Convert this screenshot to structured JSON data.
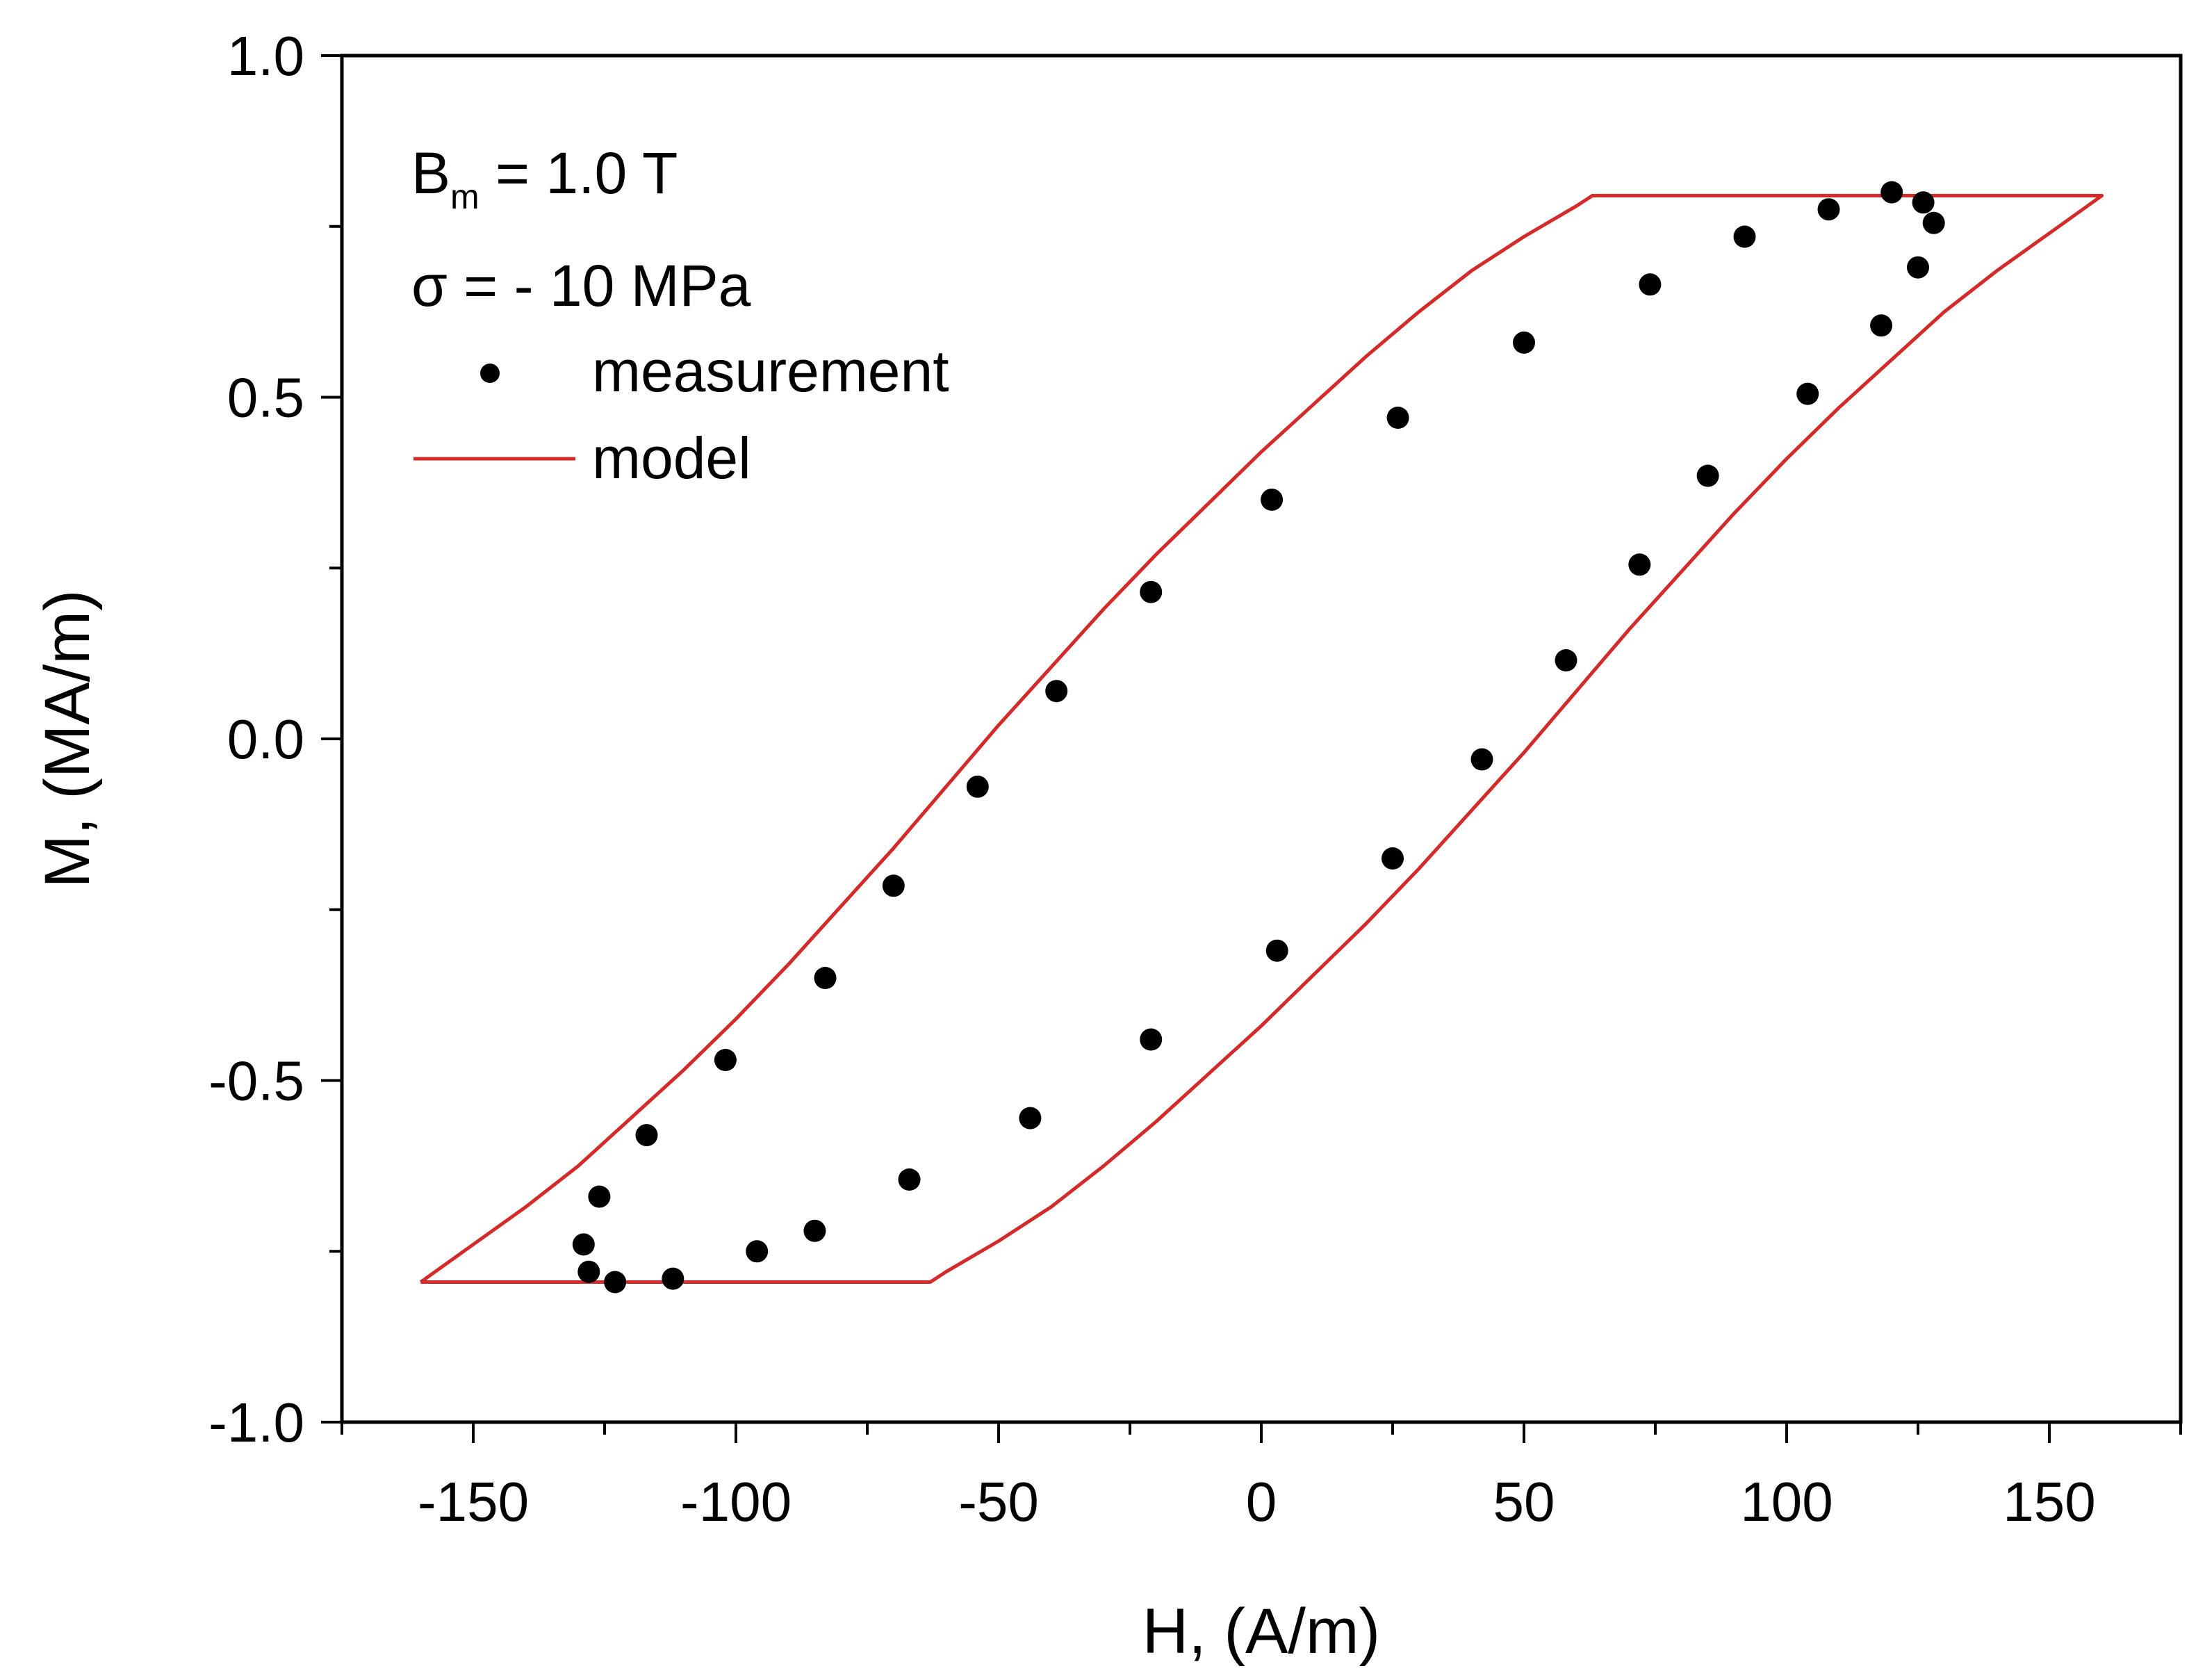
{
  "chart_data": {
    "type": "scatter",
    "title": "",
    "xlabel": "H, (A/m)",
    "ylabel": "M, (MA/m)",
    "xlim": [
      -175,
      175
    ],
    "ylim": [
      -1.0,
      1.0
    ],
    "x_ticks": [
      -150,
      -100,
      -50,
      0,
      50,
      100,
      150
    ],
    "x_tick_labels": [
      "-150",
      "-100",
      "-50",
      "0",
      "50",
      "100",
      "150"
    ],
    "y_ticks": [
      -1.0,
      -0.5,
      0.0,
      0.5,
      1.0
    ],
    "y_tick_labels": [
      "-1.0",
      "-0.5",
      "0.0",
      "0.5",
      "1.0"
    ],
    "grid": false,
    "annotations": {
      "bm_symbol": "B",
      "bm_subscript": "m",
      "bm_value": " = 1.0 T",
      "sigma": "σ = - 10 MPa"
    },
    "legend": {
      "position": "top-left",
      "entries": [
        {
          "label": "measurement",
          "marker": "circle",
          "color": "#000000"
        },
        {
          "label": "model",
          "marker": "line",
          "color": "#d42a2a"
        }
      ]
    },
    "series": [
      {
        "name": "measurement",
        "kind": "scatter",
        "color": "#000000",
        "x": [
          120,
          126,
          128,
          125,
          118,
          104,
          85,
          72,
          58,
          42,
          25,
          3,
          -21,
          -44,
          -67,
          -85,
          -96,
          -112,
          -123,
          -128,
          -129,
          -126,
          -117,
          -102,
          -83,
          -70,
          -54,
          -39,
          -21,
          2,
          26,
          50,
          74,
          92,
          108
        ],
        "y": [
          0.8,
          0.785,
          0.755,
          0.69,
          0.605,
          0.505,
          0.385,
          0.255,
          0.115,
          -0.03,
          -0.175,
          -0.31,
          -0.44,
          -0.555,
          -0.645,
          -0.72,
          -0.75,
          -0.79,
          -0.795,
          -0.78,
          -0.74,
          -0.67,
          -0.58,
          -0.47,
          -0.35,
          -0.215,
          -0.07,
          0.07,
          0.215,
          0.35,
          0.47,
          0.58,
          0.665,
          0.735,
          0.775
        ]
      },
      {
        "name": "model",
        "kind": "line",
        "color": "#d42a2a",
        "x": [
          -160,
          -150,
          -140,
          -130,
          -120,
          -110,
          -100,
          -90,
          -80,
          -70,
          -60,
          -50,
          -40,
          -30,
          -20,
          -10,
          0,
          10,
          20,
          30,
          40,
          50,
          60,
          63,
          160,
          150,
          140,
          130,
          120,
          110,
          100,
          90,
          80,
          70,
          60,
          50,
          40,
          30,
          20,
          10,
          0,
          -10,
          -20,
          -30,
          -40,
          -50,
          -60,
          -63,
          -160
        ],
        "y": [
          -0.795,
          -0.74,
          -0.685,
          -0.625,
          -0.555,
          -0.485,
          -0.41,
          -0.33,
          -0.245,
          -0.16,
          -0.07,
          0.02,
          0.105,
          0.19,
          0.27,
          0.345,
          0.42,
          0.49,
          0.56,
          0.625,
          0.685,
          0.735,
          0.78,
          0.795,
          0.795,
          0.74,
          0.685,
          0.625,
          0.555,
          0.485,
          0.41,
          0.33,
          0.245,
          0.16,
          0.07,
          -0.02,
          -0.105,
          -0.19,
          -0.27,
          -0.345,
          -0.42,
          -0.49,
          -0.56,
          -0.625,
          -0.685,
          -0.735,
          -0.78,
          -0.795,
          -0.795
        ]
      }
    ]
  }
}
